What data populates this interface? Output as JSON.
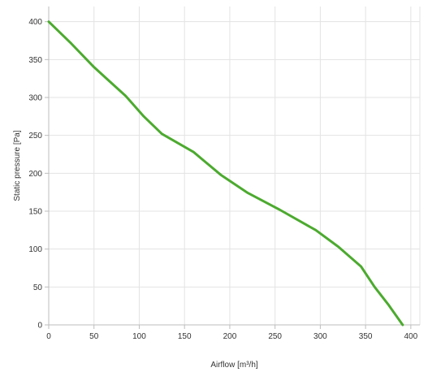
{
  "chart_data": {
    "type": "line",
    "title": "",
    "xlabel": "Airflow [m³/h]",
    "ylabel": "Static pressure [Pa]",
    "xlim": [
      0,
      410
    ],
    "ylim": [
      0,
      420
    ],
    "x_ticks": [
      0,
      50,
      100,
      150,
      200,
      250,
      300,
      350,
      400
    ],
    "y_ticks": [
      0,
      50,
      100,
      150,
      200,
      250,
      300,
      350,
      400
    ],
    "grid": true,
    "legend": "none",
    "series": [
      {
        "color": "#4caa2f",
        "x": [
          0,
          25,
          50,
          85,
          105,
          125,
          160,
          190,
          220,
          255,
          295,
          320,
          345,
          360,
          375,
          391
        ],
        "y": [
          400,
          371,
          340,
          302,
          275,
          252,
          228,
          198,
          174,
          152,
          125,
          103,
          77,
          50,
          27,
          0
        ]
      }
    ]
  }
}
